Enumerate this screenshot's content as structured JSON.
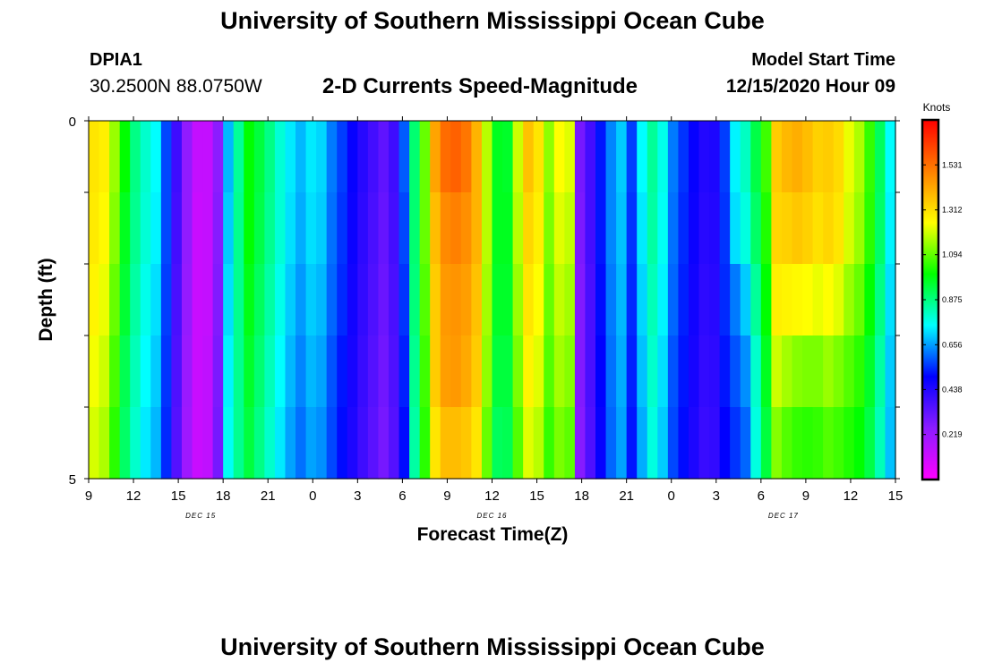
{
  "header": {
    "title": "University of Southern Mississippi Ocean Cube",
    "station_id": "DPIA1",
    "coords": "30.2500N 88.0750W",
    "subtitle": "2-D Currents Speed-Magnitude",
    "start_label": "Model Start Time",
    "start_value": "12/15/2020 Hour 09"
  },
  "footer": {
    "title": "University of Southern Mississippi Ocean Cube"
  },
  "chart_data": {
    "type": "heatmap",
    "title": "2-D Currents Speed-Magnitude",
    "xlabel": "Forecast Time(Z)",
    "ylabel": "Depth (ft)",
    "x_tick_labels": [
      "9",
      "12",
      "15",
      "18",
      "21",
      "0",
      "3",
      "6",
      "9",
      "12",
      "15",
      "18",
      "21",
      "0",
      "3",
      "6",
      "9",
      "12",
      "15"
    ],
    "date_labels": [
      {
        "text": "DEC 15",
        "tick_index": 2.5
      },
      {
        "text": "DEC 16",
        "tick_index": 9
      },
      {
        "text": "DEC 17",
        "tick_index": 15.5
      }
    ],
    "x_range_hours": [
      0,
      54
    ],
    "y_tick_labels": [
      "0",
      "5"
    ],
    "ylim": [
      0,
      5
    ],
    "y_minor_ticks": 4,
    "colorbar": {
      "label": "Knots",
      "ticks": [
        "1.531",
        "1.312",
        "1.094",
        "0.875",
        "0.656",
        "0.438",
        "0.219"
      ],
      "tick_values": [
        1.531,
        1.312,
        1.094,
        0.875,
        0.656,
        0.438,
        0.219
      ],
      "range": [
        0,
        1.75
      ],
      "colormap": [
        "#ff00ff",
        "#8c1cff",
        "#0000ff",
        "#00ffff",
        "#00ff00",
        "#ffff00",
        "#ff8000",
        "#ff0000"
      ]
    },
    "values": [
      [
        1.3,
        1.28,
        1.15,
        1.0,
        0.87,
        0.8,
        0.75,
        0.57,
        0.39,
        0.24,
        0.13,
        0.13,
        0.25,
        0.68,
        0.85,
        1.0,
        0.94,
        0.87,
        0.79,
        0.73,
        0.68,
        0.73,
        0.71,
        0.62,
        0.56,
        0.49,
        0.43,
        0.38,
        0.33,
        0.39,
        0.59,
        0.89,
        1.1,
        1.43,
        1.54,
        1.56,
        1.52,
        1.4,
        1.18,
        0.97,
        0.96,
        1.2,
        1.37,
        1.3,
        1.14,
        1.25,
        1.22,
        0.29,
        0.38,
        0.52,
        0.63,
        0.7,
        0.56,
        0.75,
        0.85,
        0.77,
        0.62,
        0.55,
        0.49,
        0.44,
        0.45,
        0.56,
        0.74,
        0.81,
        0.93,
        1.06,
        1.35,
        1.39,
        1.41,
        1.38,
        1.34,
        1.35,
        1.32,
        1.23,
        1.17,
        1.05,
        0.91,
        0.75
      ],
      [
        1.29,
        1.26,
        1.13,
        0.97,
        0.86,
        0.79,
        0.74,
        0.57,
        0.38,
        0.24,
        0.12,
        0.13,
        0.26,
        0.7,
        0.86,
        1.0,
        0.93,
        0.86,
        0.79,
        0.72,
        0.67,
        0.72,
        0.7,
        0.61,
        0.55,
        0.48,
        0.42,
        0.37,
        0.32,
        0.38,
        0.57,
        0.89,
        1.1,
        1.38,
        1.48,
        1.5,
        1.47,
        1.4,
        1.18,
        0.97,
        0.97,
        1.18,
        1.33,
        1.28,
        1.12,
        1.22,
        1.19,
        0.28,
        0.38,
        0.52,
        0.63,
        0.69,
        0.55,
        0.73,
        0.84,
        0.76,
        0.61,
        0.54,
        0.48,
        0.43,
        0.44,
        0.55,
        0.72,
        0.78,
        0.9,
        1.03,
        1.33,
        1.34,
        1.36,
        1.34,
        1.31,
        1.33,
        1.3,
        1.21,
        1.15,
        1.04,
        0.9,
        0.74
      ],
      [
        1.27,
        1.23,
        1.1,
        0.95,
        0.84,
        0.77,
        0.72,
        0.56,
        0.37,
        0.23,
        0.12,
        0.13,
        0.27,
        0.72,
        0.86,
        0.98,
        0.91,
        0.84,
        0.77,
        0.7,
        0.65,
        0.7,
        0.68,
        0.6,
        0.54,
        0.47,
        0.41,
        0.36,
        0.31,
        0.37,
        0.55,
        0.88,
        1.08,
        1.35,
        1.45,
        1.46,
        1.44,
        1.37,
        1.16,
        0.96,
        0.96,
        1.15,
        1.3,
        1.25,
        1.1,
        1.19,
        1.16,
        0.27,
        0.37,
        0.51,
        0.62,
        0.68,
        0.54,
        0.71,
        0.82,
        0.74,
        0.6,
        0.53,
        0.47,
        0.42,
        0.43,
        0.54,
        0.62,
        0.7,
        0.85,
        1.0,
        1.28,
        1.27,
        1.26,
        1.25,
        1.23,
        1.25,
        1.22,
        1.15,
        1.1,
        1.0,
        0.87,
        0.72
      ],
      [
        1.24,
        1.2,
        1.07,
        0.92,
        0.82,
        0.75,
        0.7,
        0.55,
        0.36,
        0.22,
        0.12,
        0.14,
        0.28,
        0.74,
        0.86,
        0.96,
        0.89,
        0.82,
        0.75,
        0.68,
        0.63,
        0.68,
        0.66,
        0.58,
        0.52,
        0.46,
        0.4,
        0.35,
        0.3,
        0.36,
        0.53,
        0.86,
        1.06,
        1.35,
        1.44,
        1.45,
        1.42,
        1.35,
        1.14,
        0.94,
        0.94,
        1.12,
        1.27,
        1.22,
        1.08,
        1.16,
        1.13,
        0.27,
        0.37,
        0.5,
        0.61,
        0.67,
        0.53,
        0.69,
        0.8,
        0.72,
        0.58,
        0.52,
        0.46,
        0.41,
        0.42,
        0.52,
        0.58,
        0.64,
        0.8,
        0.97,
        1.2,
        1.16,
        1.13,
        1.12,
        1.12,
        1.15,
        1.12,
        1.08,
        1.04,
        0.96,
        0.84,
        0.7
      ],
      [
        1.21,
        1.17,
        1.04,
        0.9,
        0.8,
        0.73,
        0.68,
        0.54,
        0.35,
        0.21,
        0.12,
        0.14,
        0.29,
        0.76,
        0.86,
        0.94,
        0.87,
        0.8,
        0.73,
        0.66,
        0.61,
        0.66,
        0.64,
        0.57,
        0.51,
        0.45,
        0.39,
        0.34,
        0.29,
        0.35,
        0.51,
        0.84,
        1.04,
        1.3,
        1.38,
        1.38,
        1.36,
        1.3,
        1.1,
        0.91,
        0.92,
        1.08,
        1.22,
        1.18,
        1.05,
        1.12,
        1.09,
        0.26,
        0.36,
        0.49,
        0.6,
        0.66,
        0.52,
        0.67,
        0.78,
        0.7,
        0.57,
        0.51,
        0.45,
        0.4,
        0.41,
        0.5,
        0.55,
        0.6,
        0.78,
        0.94,
        1.13,
        1.08,
        1.05,
        1.04,
        1.05,
        1.08,
        1.06,
        1.03,
        1.0,
        0.93,
        0.82,
        0.69
      ]
    ]
  }
}
